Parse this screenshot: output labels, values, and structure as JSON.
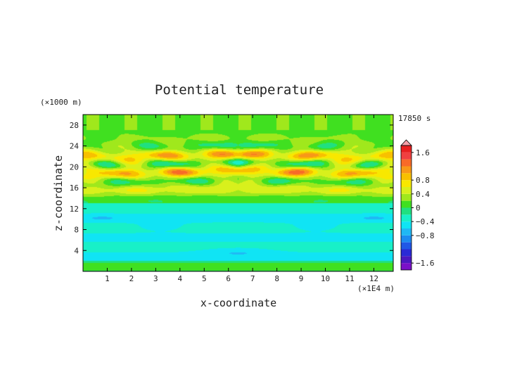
{
  "chart_data": {
    "type": "heatmap",
    "title": "Potential temperature",
    "xlabel": "x-coordinate",
    "ylabel": "z-coordinate",
    "x_unit": "(×1E4 m)",
    "y_unit": "(×1000 m)",
    "time_label": "17850 s",
    "xlim": [
      0,
      12.8
    ],
    "ylim": [
      0,
      30
    ],
    "x_ticks": [
      "1",
      "2",
      "3",
      "4",
      "5",
      "6",
      "7",
      "8",
      "9",
      "10",
      "11",
      "12"
    ],
    "y_ticks": [
      "4",
      "8",
      "12",
      "16",
      "20",
      "24",
      "28"
    ],
    "colorbar": {
      "levels": [
        -1.8,
        -1.6,
        -1.4,
        -1.2,
        -1.0,
        -0.8,
        -0.6,
        -0.4,
        -0.2,
        0,
        0.2,
        0.4,
        0.6,
        0.8,
        1.0,
        1.2,
        1.4,
        1.6,
        1.8
      ],
      "tick_labels": [
        "1.6",
        "0.8",
        "0.4",
        "0",
        "-0.4",
        "-0.8",
        "-1.6"
      ],
      "colors": [
        "#7a10c8",
        "#4b18c0",
        "#2a2ad6",
        "#2058e6",
        "#1c8cf0",
        "#20b8f4",
        "#10e4f4",
        "#18f0c8",
        "#20e080",
        "#40e020",
        "#a0e81c",
        "#d8f01c",
        "#f8e800",
        "#f8c000",
        "#f89818",
        "#f86a28",
        "#f04040",
        "#e82020"
      ]
    },
    "field": {
      "description_free": true,
      "lower_layer_value": -0.35,
      "upper_band_z": [
        14,
        27
      ]
    }
  }
}
